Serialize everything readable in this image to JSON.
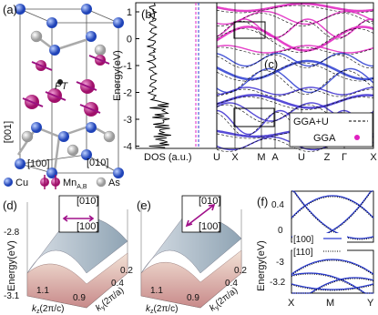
{
  "panel_a": {
    "label": "(a)",
    "annotation": "PT",
    "directions": [
      "[001]",
      "[100]",
      "[010]"
    ],
    "legend": {
      "cu": "Cu",
      "mn": "Mn",
      "mn_sub": "A,B",
      "as": "As"
    }
  },
  "panel_b": {
    "label": "(b)",
    "xlabel": "DOS (a.u.)",
    "ylabel": "Energy(eV)",
    "yticks": [
      "1",
      "0",
      "-1",
      "-2",
      "-3",
      "-4"
    ]
  },
  "panel_c": {
    "label": "(c)",
    "kpath": [
      "U",
      "X",
      "M",
      "A",
      "U",
      "Z",
      "Γ",
      "X"
    ],
    "legend": [
      "GGA+U",
      "GGA"
    ]
  },
  "panel_d": {
    "label": "(d)",
    "inset": [
      "[010]",
      "[100]"
    ],
    "zlabel": "Energy(eV)",
    "zticks": [
      "-2.8",
      "-3.1"
    ],
    "kz": {
      "symbol": "k",
      "sub": "z",
      "unit": "(2π/c)",
      "ticks": [
        "1.1",
        "0.9"
      ]
    },
    "ky": {
      "symbol": "k",
      "sub": "y",
      "unit": "(2π/a)",
      "ticks": [
        "0.4",
        "0.2"
      ]
    }
  },
  "panel_e": {
    "label": "(e)",
    "inset": [
      "[010]",
      "[100]"
    ],
    "kz": {
      "symbol": "k",
      "sub": "z",
      "unit": "(2π/c)",
      "ticks": [
        "1.1",
        "0.9"
      ]
    },
    "ky": {
      "symbol": "k",
      "sub": "y",
      "unit": "(2π/a)",
      "ticks": [
        "0.4",
        "0.2"
      ]
    }
  },
  "panel_f": {
    "label": "(f)",
    "ylabel": "Energy(eV)",
    "yticks": [
      "0.4",
      "0",
      "-3",
      "-3.2"
    ],
    "legend": [
      "[100]",
      "[110]"
    ],
    "kpath": [
      "X",
      "M",
      "Y"
    ]
  }
}
